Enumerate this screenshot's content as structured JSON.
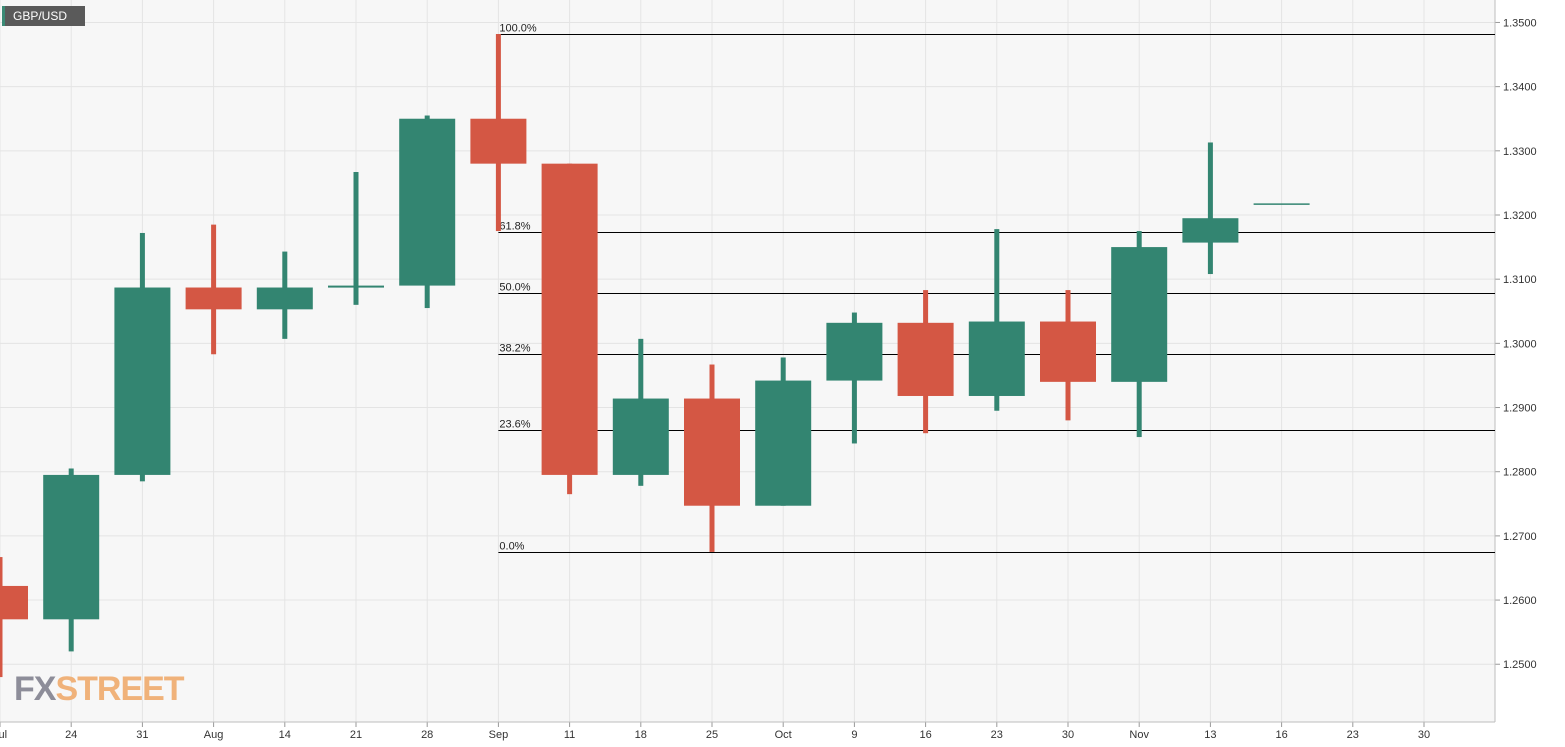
{
  "symbol": "GBP/USD",
  "logo": {
    "part1": "FX",
    "part2": "STREET"
  },
  "colors": {
    "bullish": "#338571",
    "bearish": "#d45744",
    "background": "#f7f7f7",
    "grid": "#e4e4e4",
    "fib_line": "#000000",
    "axis_text": "#333333"
  },
  "chart_data": {
    "type": "candlestick",
    "title": "GBP/USD",
    "timeframe": "weekly",
    "ylim": [
      1.241,
      1.3535
    ],
    "y_ticks": [
      "1.2500",
      "1.2600",
      "1.2700",
      "1.2800",
      "1.2900",
      "1.3000",
      "1.3100",
      "1.3200",
      "1.3300",
      "1.3400",
      "1.3500"
    ],
    "x_ticks": [
      "Jul",
      "24",
      "31",
      "Aug",
      "14",
      "21",
      "28",
      "Sep",
      "11",
      "18",
      "25",
      "Oct",
      "9",
      "16",
      "23",
      "30",
      "Nov",
      "13",
      "16",
      "23",
      "30"
    ],
    "candles": [
      {
        "week": "Jul 17",
        "open": 1.2622,
        "high": 1.2667,
        "low": 1.248,
        "close": 1.257
      },
      {
        "week": "Jul 24",
        "open": 1.257,
        "high": 1.2805,
        "low": 1.252,
        "close": 1.2795
      },
      {
        "week": "Jul 31",
        "open": 1.2795,
        "high": 1.3172,
        "low": 1.2785,
        "close": 1.3087
      },
      {
        "week": "Aug 7",
        "open": 1.3087,
        "high": 1.3185,
        "low": 1.2983,
        "close": 1.3053
      },
      {
        "week": "Aug 14",
        "open": 1.3053,
        "high": 1.3143,
        "low": 1.3007,
        "close": 1.3087
      },
      {
        "week": "Aug 21",
        "open": 1.3087,
        "high": 1.3267,
        "low": 1.306,
        "close": 1.309
      },
      {
        "week": "Aug 28",
        "open": 1.309,
        "high": 1.3355,
        "low": 1.3055,
        "close": 1.335
      },
      {
        "week": "Sep 4",
        "open": 1.335,
        "high": 1.3482,
        "low": 1.3175,
        "close": 1.328
      },
      {
        "week": "Sep 11",
        "open": 1.328,
        "high": 1.328,
        "low": 1.2765,
        "close": 1.2795
      },
      {
        "week": "Sep 18",
        "open": 1.2795,
        "high": 1.3007,
        "low": 1.2778,
        "close": 1.2914
      },
      {
        "week": "Sep 25",
        "open": 1.2914,
        "high": 1.2967,
        "low": 1.2675,
        "close": 1.2747
      },
      {
        "week": "Oct 2",
        "open": 1.2747,
        "high": 1.2978,
        "low": 1.2747,
        "close": 1.2942
      },
      {
        "week": "Oct 9",
        "open": 1.2942,
        "high": 1.3048,
        "low": 1.2844,
        "close": 1.3032
      },
      {
        "week": "Oct 16",
        "open": 1.3032,
        "high": 1.3083,
        "low": 1.286,
        "close": 1.2918
      },
      {
        "week": "Oct 23",
        "open": 1.2918,
        "high": 1.3178,
        "low": 1.2895,
        "close": 1.3034
      },
      {
        "week": "Oct 30",
        "open": 1.3034,
        "high": 1.3083,
        "low": 1.288,
        "close": 1.294
      },
      {
        "week": "Nov 6",
        "open": 1.294,
        "high": 1.3175,
        "low": 1.2854,
        "close": 1.315
      },
      {
        "week": "Nov 13",
        "open": 1.3157,
        "high": 1.3313,
        "low": 1.3108,
        "close": 1.3195
      },
      {
        "week": "Nov 20",
        "open": 1.3217,
        "high": 1.3217,
        "low": 1.3217,
        "close": 1.3217
      }
    ],
    "fibonacci": {
      "high": 1.3482,
      "low": 1.2675,
      "levels": [
        {
          "label": "100.0%",
          "value": 1.3482
        },
        {
          "label": "61.8%",
          "value": 1.3174
        },
        {
          "label": "50.0%",
          "value": 1.3079
        },
        {
          "label": "38.2%",
          "value": 1.2983
        },
        {
          "label": "23.6%",
          "value": 1.2865
        },
        {
          "label": "0.0%",
          "value": 1.2675
        }
      ]
    },
    "grid": true
  }
}
